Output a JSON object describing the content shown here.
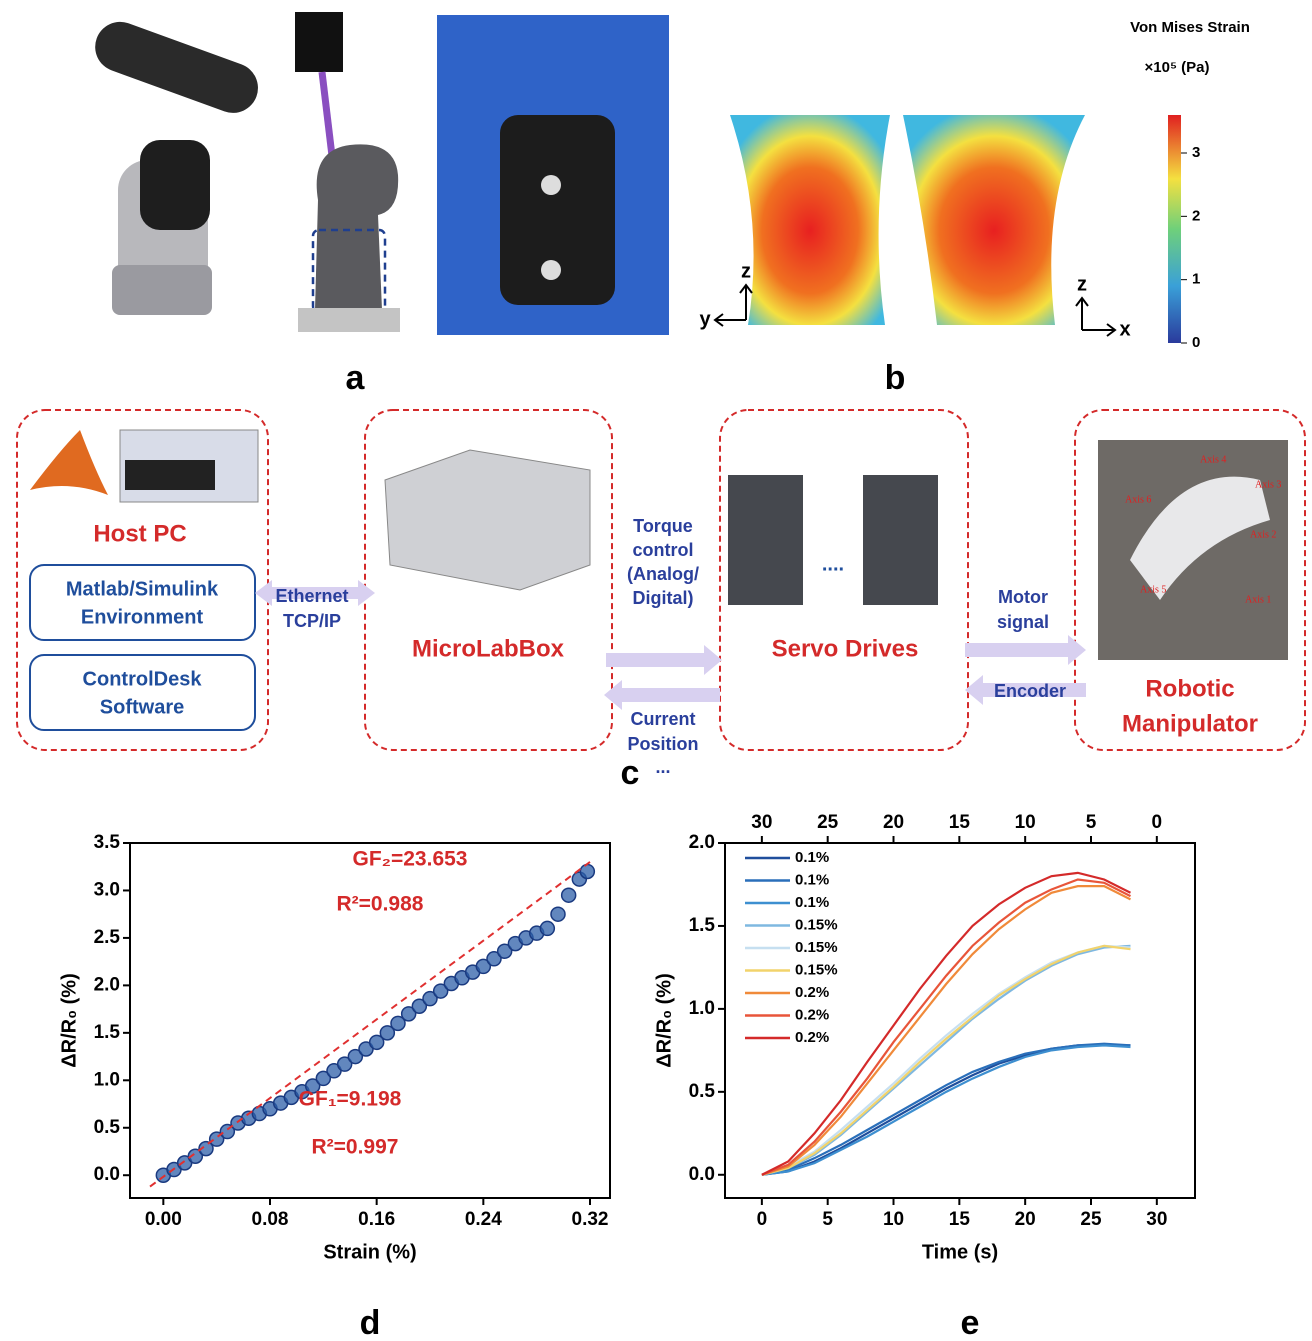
{
  "panel_labels": [
    "a",
    "b",
    "c",
    "d",
    "e"
  ],
  "colorbar": {
    "title": "Von Mises Strain",
    "unit": "×10⁵ (Pa)",
    "lim": [
      0,
      3.6
    ],
    "ticks": [
      0,
      1,
      2,
      3
    ]
  },
  "axes_b": [
    "z",
    "y",
    "z",
    "x"
  ],
  "diagram": {
    "host": {
      "title": "Host PC",
      "items": [
        [
          "Matlab/Simulink",
          "Environment"
        ],
        [
          "ControlDesk",
          "Software"
        ]
      ]
    },
    "microlabbox": "MicroLabBox",
    "servo": {
      "title": "Servo Drives",
      "ellipsis": "...."
    },
    "robot": {
      "title": [
        "Robotic",
        "Manipulator"
      ],
      "axes": [
        "Axis 1",
        "Axis 2",
        "Axis 3",
        "Axis 4",
        "Axis 5",
        "Axis 6"
      ]
    },
    "links": {
      "ethernet": [
        "Ethernet",
        "TCP/IP"
      ],
      "torque": [
        "Torque",
        "control",
        "(Analog/",
        "Digital)"
      ],
      "current": [
        "Current",
        "Position",
        "..."
      ],
      "motor": [
        "Motor",
        "signal"
      ],
      "encoder": [
        "Encoder"
      ]
    }
  },
  "chart_data": [
    {
      "type": "scatter",
      "xlabel": "Strain (%)",
      "ylabel": "ΔR/R₀ (%)",
      "xlim": [
        -0.025,
        0.335
      ],
      "ylim": [
        -0.24,
        3.5
      ],
      "xticks": [
        {
          "value": 0,
          "label": "0.00"
        },
        0.08,
        0.16,
        0.24,
        0.32
      ],
      "yticks": [
        {
          "value": 0,
          "label": "0.0"
        },
        0.5,
        {
          "value": 1,
          "label": "1.0"
        },
        1.5,
        {
          "value": 2,
          "label": "2.0"
        },
        2.5,
        {
          "value": 3,
          "label": "3.0"
        },
        3.5
      ],
      "annotations": [
        "GF₂=23.653",
        "R²=0.988",
        "GF₁=9.198",
        "R²=0.997"
      ],
      "series": [
        {
          "color": "#2e5fa8",
          "x": [
            0,
            0.008,
            0.016,
            0.024,
            0.032,
            0.04,
            0.048,
            0.056,
            0.064,
            0.072,
            0.08,
            0.088,
            0.096,
            0.104,
            0.112,
            0.12,
            0.128,
            0.136,
            0.144,
            0.152,
            0.16,
            0.168,
            0.176,
            0.184,
            0.192,
            0.2,
            0.208,
            0.216,
            0.224,
            0.232,
            0.24,
            0.248,
            0.256,
            0.264,
            0.272,
            0.28,
            0.288,
            0.296,
            0.304,
            0.312,
            0.318
          ],
          "values": [
            0,
            0.06,
            0.13,
            0.2,
            0.28,
            0.38,
            0.46,
            0.55,
            0.6,
            0.65,
            0.7,
            0.76,
            0.82,
            0.88,
            0.94,
            1.02,
            1.1,
            1.17,
            1.25,
            1.33,
            1.4,
            1.5,
            1.6,
            1.7,
            1.78,
            1.86,
            1.94,
            2.02,
            2.08,
            2.14,
            2.2,
            2.28,
            2.36,
            2.44,
            2.5,
            2.55,
            2.6,
            2.75,
            2.95,
            3.12,
            3.2
          ]
        },
        {
          "type": "line",
          "dashed": true,
          "color": "#e03030",
          "x": [
            -0.01,
            0.32
          ],
          "values": [
            -0.12,
            3.3
          ]
        }
      ]
    },
    {
      "type": "line",
      "xlabel": "Time (s)",
      "ylabel": "ΔR/R₀ (%)",
      "xlim": [
        -2.8,
        32.9
      ],
      "ylim": [
        -0.14,
        2.0
      ],
      "xticks": [
        0,
        5,
        10,
        15,
        20,
        25,
        30
      ],
      "x2lim": [
        32.8,
        -2.9
      ],
      "x2ticks": [
        30,
        25,
        20,
        15,
        10,
        5,
        0
      ],
      "yticks": [
        {
          "value": 0,
          "label": "0.0"
        },
        0.5,
        {
          "value": 1,
          "label": "1.0"
        },
        1.5,
        {
          "value": 2,
          "label": "2.0"
        }
      ],
      "legend": "upper left",
      "x": [
        0,
        2,
        4,
        6,
        8,
        10,
        12,
        14,
        16,
        18,
        20,
        22,
        24,
        26,
        28
      ],
      "series": [
        {
          "name": "0.1%",
          "color": "#1f4e9c",
          "values": [
            0,
            0.02,
            0.08,
            0.16,
            0.25,
            0.34,
            0.43,
            0.52,
            0.6,
            0.67,
            0.72,
            0.76,
            0.78,
            0.78,
            0.78
          ]
        },
        {
          "name": "0.1%",
          "color": "#2a6fba",
          "values": [
            0,
            0.03,
            0.1,
            0.18,
            0.27,
            0.36,
            0.45,
            0.54,
            0.62,
            0.68,
            0.73,
            0.76,
            0.78,
            0.79,
            0.78
          ]
        },
        {
          "name": "0.1%",
          "color": "#3d8fd0",
          "values": [
            0,
            0.02,
            0.07,
            0.15,
            0.23,
            0.32,
            0.41,
            0.5,
            0.58,
            0.65,
            0.71,
            0.75,
            0.77,
            0.78,
            0.77
          ]
        },
        {
          "name": "0.15%",
          "color": "#7fb8e0",
          "values": [
            0,
            0.04,
            0.12,
            0.24,
            0.38,
            0.52,
            0.66,
            0.8,
            0.94,
            1.06,
            1.17,
            1.26,
            1.33,
            1.37,
            1.38
          ]
        },
        {
          "name": "0.15%",
          "color": "#c6dff0",
          "values": [
            0,
            0.05,
            0.14,
            0.27,
            0.41,
            0.55,
            0.7,
            0.84,
            0.97,
            1.09,
            1.19,
            1.28,
            1.34,
            1.38,
            1.37
          ]
        },
        {
          "name": "0.15%",
          "color": "#f2d36b",
          "values": [
            0,
            0.04,
            0.13,
            0.25,
            0.39,
            0.53,
            0.68,
            0.82,
            0.95,
            1.08,
            1.18,
            1.27,
            1.34,
            1.38,
            1.36
          ]
        },
        {
          "name": "0.2%",
          "color": "#f08a3a",
          "values": [
            0,
            0.05,
            0.18,
            0.35,
            0.55,
            0.75,
            0.95,
            1.15,
            1.33,
            1.48,
            1.6,
            1.7,
            1.74,
            1.74,
            1.66
          ]
        },
        {
          "name": "0.2%",
          "color": "#e8553a",
          "values": [
            0,
            0.06,
            0.2,
            0.38,
            0.58,
            0.8,
            1.0,
            1.2,
            1.38,
            1.52,
            1.64,
            1.72,
            1.78,
            1.76,
            1.68
          ]
        },
        {
          "name": "0.2%",
          "color": "#d42a2a",
          "values": [
            0,
            0.08,
            0.25,
            0.45,
            0.68,
            0.9,
            1.12,
            1.32,
            1.5,
            1.63,
            1.73,
            1.8,
            1.82,
            1.78,
            1.7
          ]
        }
      ]
    }
  ]
}
